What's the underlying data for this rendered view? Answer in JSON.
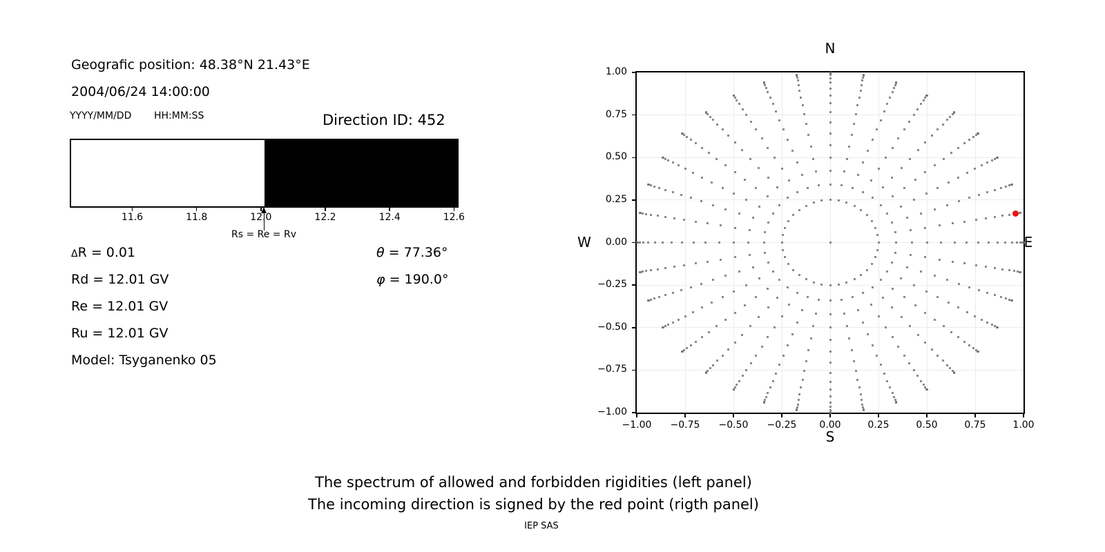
{
  "left_panel": {
    "geo_position": "Geografic position: 48.38°N 21.43°E",
    "datetime": "2004/06/24 14:00:00",
    "date_format_hint": "YYYY/MM/DD",
    "time_format_hint": "HH:MM:SS",
    "direction_id": "Direction ID: 452",
    "params": {
      "delta_r": {
        "sym": "Δ",
        "rest": "R = 0.01"
      },
      "rd": "Rd = 12.01 GV",
      "re": "Re = 12.01 GV",
      "ru": "Ru = 12.01 GV",
      "model": "Model: Tsyganenko 05",
      "theta": {
        "sym": "θ",
        "rest": " = 77.36°"
      },
      "phi": {
        "sym": "φ",
        "rest": " = 190.0°"
      }
    }
  },
  "right_panel": {
    "compass": {
      "north": "N",
      "south": "S",
      "west": "W",
      "east": "E"
    }
  },
  "caption": {
    "line1": "The spectrum of allowed and forbidden rigidities (left panel)",
    "line2": "The incoming direction is signed by the red point (rigth panel)",
    "credit": "IEP SAS"
  },
  "chart_data": [
    {
      "type": "bar",
      "panel": "left-rigidity-spectrum",
      "xmin": 11.41,
      "xmax": 12.61,
      "regions": [
        {
          "label": "allowed",
          "from": 11.41,
          "to": 12.01,
          "color": "#ffffff"
        },
        {
          "label": "forbidden",
          "from": 12.01,
          "to": 12.61,
          "color": "#000000"
        }
      ],
      "tick_values": [
        11.6,
        11.8,
        12.0,
        12.2,
        12.4,
        12.6
      ],
      "tick_labels": [
        "11.6",
        "11.8",
        "12.0",
        "12.2",
        "12.4",
        "12.6"
      ],
      "marker": {
        "value": 12.01,
        "label": "Rs = Re = Rv"
      }
    },
    {
      "type": "scatter",
      "panel": "right-incoming-directions",
      "xlim": [
        -1,
        1
      ],
      "ylim": [
        -1,
        1
      ],
      "grid": true,
      "x_tick_values": [
        -1,
        -0.75,
        -0.5,
        -0.25,
        0,
        0.25,
        0.5,
        0.75,
        1
      ],
      "x_tick_labels": [
        "−1.00",
        "−0.75",
        "−0.50",
        "−0.25",
        "0.00",
        "0.25",
        "0.50",
        "0.75",
        "1.00"
      ],
      "y_tick_values": [
        1,
        0.75,
        0.5,
        0.25,
        0,
        -0.25,
        -0.5,
        -0.75,
        -1
      ],
      "y_tick_labels": [
        "1.00",
        "0.75",
        "0.50",
        "0.25",
        "0.00",
        "−0.25",
        "−0.50",
        "−0.75",
        "−1.00"
      ],
      "center_point": [
        0,
        0
      ],
      "ray_azimuths_deg": {
        "start": 0,
        "step": 10,
        "count": 36
      },
      "ray_radii": [
        0.25,
        0.342,
        0.423,
        0.5,
        0.574,
        0.643,
        0.707,
        0.766,
        0.819,
        0.866,
        0.906,
        0.94,
        0.966,
        0.985,
        0.996,
        1.0
      ],
      "dot_color": "#6e6e6e",
      "dot_opacity": 0.8,
      "grid_color": "#ececec",
      "red_point": {
        "x": 0.96,
        "y": 0.17,
        "color": "#ee1111"
      }
    }
  ]
}
